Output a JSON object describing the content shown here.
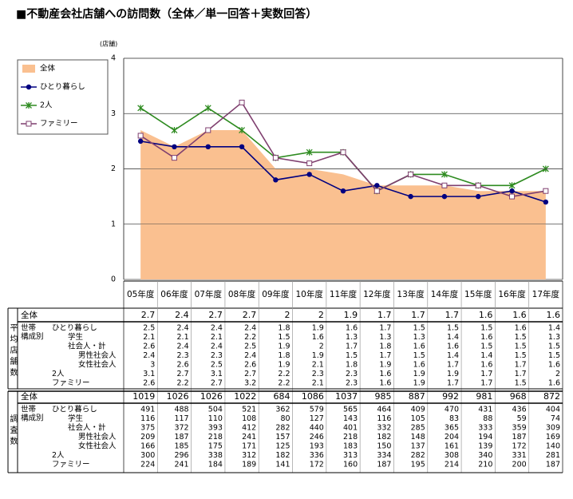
{
  "chart_data": {
    "type": "line",
    "title": "■不動産会社店舗への訪問数（全体／単一回答＋実数回答）",
    "y_unit": "(店舗)",
    "categories": [
      "05年度",
      "06年度",
      "07年度",
      "08年度",
      "09年度",
      "10年度",
      "11年度",
      "12年度",
      "13年度",
      "14年度",
      "15年度",
      "16年度",
      "17年度"
    ],
    "ylim": [
      0,
      4
    ],
    "yticks": [
      0,
      1,
      2,
      3,
      4
    ],
    "grid": true,
    "series": [
      {
        "name": "全体",
        "color": "#fac090",
        "marker": "area",
        "values": [
          2.7,
          2.4,
          2.7,
          2.7,
          2.0,
          2.0,
          1.9,
          1.7,
          1.7,
          1.7,
          1.6,
          1.6,
          1.6
        ]
      },
      {
        "name": "ひとり暮らし",
        "color": "#000080",
        "marker": "circle",
        "values": [
          2.5,
          2.4,
          2.4,
          2.4,
          1.8,
          1.9,
          1.6,
          1.7,
          1.5,
          1.5,
          1.5,
          1.6,
          1.4
        ]
      },
      {
        "name": "2人",
        "color": "#2e8b20",
        "marker": "x",
        "values": [
          3.1,
          2.7,
          3.1,
          2.7,
          2.2,
          2.3,
          2.3,
          1.6,
          1.9,
          1.9,
          1.7,
          1.7,
          2.0
        ]
      },
      {
        "name": "ファミリー",
        "color": "#7f3f6f",
        "marker": "square",
        "values": [
          2.6,
          2.2,
          2.7,
          3.2,
          2.2,
          2.1,
          2.3,
          1.6,
          1.9,
          1.7,
          1.7,
          1.5,
          1.6
        ]
      }
    ]
  },
  "avg_table": {
    "side_label": "平均店舗数",
    "group_label": [
      "世帯",
      "構成別"
    ],
    "rows": [
      {
        "label": "学生",
        "values": [
          2.1,
          2.1,
          2.1,
          2.2,
          1.5,
          1.6,
          1.3,
          1.3,
          1.3,
          1.4,
          1.6,
          1.5,
          1.3
        ]
      },
      {
        "label": "社会人・計",
        "values": [
          2.6,
          2.4,
          2.4,
          2.5,
          1.9,
          2.0,
          1.7,
          1.8,
          1.6,
          1.6,
          1.5,
          1.5,
          1.5
        ]
      },
      {
        "label": "男性社会人",
        "values": [
          2.4,
          2.3,
          2.3,
          2.4,
          1.8,
          1.9,
          1.5,
          1.7,
          1.5,
          1.4,
          1.4,
          1.5,
          1.5
        ]
      },
      {
        "label": "女性社会人",
        "values": [
          3.0,
          2.6,
          2.5,
          2.6,
          1.9,
          2.1,
          1.8,
          1.9,
          1.6,
          1.7,
          1.6,
          1.7,
          1.6
        ]
      }
    ]
  },
  "count_table": {
    "side_label": "調査数",
    "group_label": [
      "世帯",
      "構成別"
    ],
    "rows": [
      {
        "label": "全体",
        "values": [
          1019,
          1026,
          1026,
          1022,
          684,
          1086,
          1037,
          985,
          887,
          992,
          981,
          968,
          872
        ]
      },
      {
        "label": "ひとり暮らし",
        "values": [
          491,
          488,
          504,
          521,
          362,
          579,
          565,
          464,
          409,
          470,
          431,
          436,
          404
        ]
      },
      {
        "label": "学生",
        "values": [
          116,
          117,
          110,
          108,
          80,
          127,
          143,
          116,
          105,
          83,
          88,
          59,
          74
        ]
      },
      {
        "label": "社会人・計",
        "values": [
          375,
          372,
          393,
          412,
          282,
          440,
          401,
          332,
          285,
          365,
          333,
          359,
          309
        ]
      },
      {
        "label": "男性社会人",
        "values": [
          209,
          187,
          218,
          241,
          157,
          246,
          218,
          182,
          148,
          204,
          194,
          187,
          169
        ]
      },
      {
        "label": "女性社会人",
        "values": [
          166,
          185,
          175,
          171,
          125,
          193,
          183,
          150,
          137,
          161,
          139,
          172,
          140
        ]
      },
      {
        "label": "2人",
        "values": [
          300,
          296,
          338,
          312,
          182,
          336,
          313,
          334,
          282,
          308,
          340,
          331,
          281
        ]
      },
      {
        "label": "ファミリー",
        "values": [
          224,
          241,
          184,
          189,
          141,
          172,
          160,
          187,
          195,
          214,
          210,
          200,
          187
        ]
      }
    ]
  }
}
